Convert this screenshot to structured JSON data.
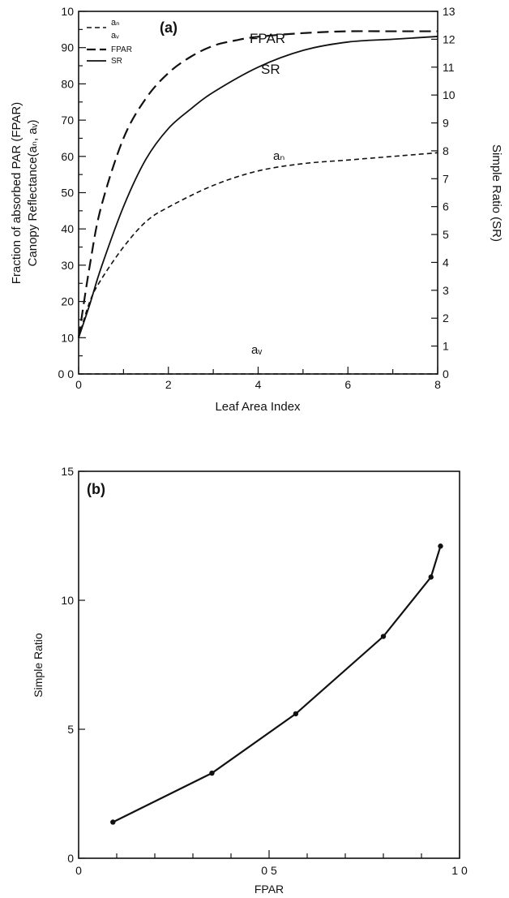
{
  "chart_data": [
    {
      "panel_label": "(a)",
      "type": "line",
      "xlabel": "Leaf Area Index",
      "ylabel_lines": [
        "Fraction of absorbed PAR (FPAR)",
        "Canopy Reflectance(aₙ, aᵥ)"
      ],
      "y2label": "Simple Ratio (SR)",
      "xlim": [
        0,
        8
      ],
      "ylim": [
        0,
        100
      ],
      "y2lim": [
        0,
        13
      ],
      "xticks": [
        "0",
        "2",
        "4",
        "6",
        "8"
      ],
      "yticks": [
        "0 0",
        "10",
        "20",
        "30",
        "40",
        "50",
        "60",
        "70",
        "80",
        "90",
        "10"
      ],
      "y2ticks": [
        "0",
        "1",
        "2",
        "3",
        "4",
        "5",
        "6",
        "7",
        "8",
        "9",
        "10",
        "11",
        "12",
        "13"
      ],
      "legend": {
        "placement": "top-left",
        "entries": [
          "aₙ",
          "aᵥ",
          "FPAR",
          "SR"
        ]
      },
      "annotations": {
        "fpar": "FPAR",
        "sr": "SR",
        "an": "aₙ",
        "av": "aᵥ"
      },
      "series": [
        {
          "name": "FPAR",
          "axis": "left",
          "style": "long-dash",
          "x": [
            0,
            0.25,
            0.5,
            1,
            1.5,
            2,
            2.5,
            3,
            3.5,
            4,
            5,
            6,
            7,
            8
          ],
          "y": [
            10,
            30,
            46,
            65,
            76,
            83,
            87.5,
            90.5,
            92,
            93,
            94,
            94.5,
            94.5,
            94.5
          ]
        },
        {
          "name": "SR",
          "axis": "right",
          "style": "solid",
          "x": [
            0,
            0.25,
            0.5,
            1,
            1.5,
            2,
            2.5,
            3,
            4,
            5,
            6,
            7,
            8
          ],
          "y": [
            1.3,
            2.5,
            3.8,
            6.0,
            7.7,
            8.8,
            9.5,
            10.1,
            11.0,
            11.6,
            11.9,
            12.0,
            12.1
          ]
        },
        {
          "name": "aₙ",
          "axis": "left",
          "style": "short-dash",
          "x": [
            0,
            0.25,
            0.5,
            1,
            1.5,
            2,
            3,
            4,
            5,
            6,
            7,
            8
          ],
          "y": [
            10,
            20,
            26,
            35,
            42,
            46,
            52,
            56,
            58,
            59,
            60,
            61
          ]
        },
        {
          "name": "aᵥ",
          "axis": "left",
          "style": "short-dash",
          "x": [
            0,
            8
          ],
          "y": [
            0,
            0
          ]
        }
      ]
    },
    {
      "panel_label": "(b)",
      "type": "line",
      "xlabel": "FPAR",
      "ylabel": "Simple Ratio",
      "xlim": [
        0,
        1
      ],
      "ylim": [
        0,
        15
      ],
      "xticks": [
        "0",
        "0 5",
        "1 0"
      ],
      "yticks": [
        "0",
        "5",
        "10",
        "15"
      ],
      "series": [
        {
          "x": [
            0.09,
            0.35,
            0.57,
            0.8,
            0.925,
            0.95
          ],
          "y": [
            1.4,
            3.3,
            5.6,
            8.6,
            10.9,
            12.1
          ]
        }
      ]
    }
  ]
}
